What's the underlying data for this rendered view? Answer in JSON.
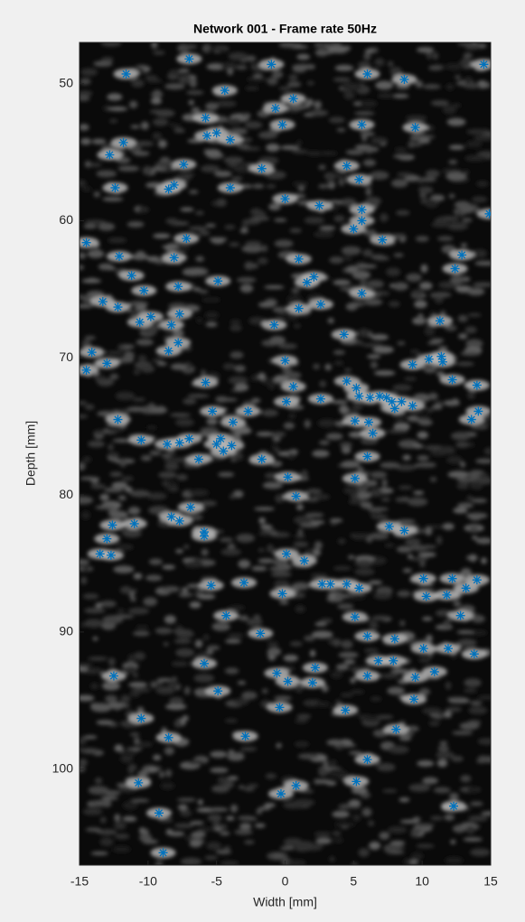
{
  "chart_data": {
    "type": "scatter",
    "title": "Network 001 - Frame rate 50Hz",
    "xlabel": "Width [mm]",
    "ylabel": "Depth [mm]",
    "color": "#0072bd",
    "xlim": [
      -15,
      15
    ],
    "ylim": [
      47,
      107
    ],
    "y_reversed": true,
    "xticks": [
      -15,
      -10,
      -5,
      0,
      5,
      10,
      15
    ],
    "yticks": [
      50,
      60,
      70,
      80,
      90,
      100
    ],
    "x": [
      -11.6,
      -7.0,
      -4.4,
      -1.0,
      0.6,
      -0.7,
      6.0,
      8.7,
      14.5,
      -5.8,
      -5.7,
      -5.0,
      -4.0,
      -0.2,
      5.6,
      9.5,
      -11.8,
      -12.8,
      -7.4,
      -1.7,
      4.5,
      5.4,
      -12.4,
      -8.5,
      -8.1,
      -4.0,
      0.0,
      2.5,
      5.6,
      5.6,
      5.0,
      14.9,
      -7.2,
      -14.5,
      7.1,
      -12.1,
      -8.1,
      1.0,
      12.9,
      12.4,
      -11.2,
      2.1,
      1.6,
      -4.9,
      -10.3,
      -7.8,
      5.6,
      -13.3,
      -12.2,
      2.6,
      1.0,
      -7.7,
      -9.8,
      -10.6,
      -8.3,
      -0.8,
      11.3,
      -7.8,
      -8.5,
      4.3,
      -14.1,
      -13.0,
      -14.5,
      0.0,
      9.3,
      10.5,
      11.4,
      11.5,
      -5.8,
      0.6,
      4.5,
      5.2,
      14.0,
      12.2,
      -5.3,
      -2.7,
      0.1,
      2.6,
      5.4,
      6.2,
      6.9,
      7.4,
      7.8,
      8.0,
      8.5,
      9.3,
      14.1,
      13.6,
      -3.8,
      -12.2,
      5.1,
      6.1,
      6.4,
      -10.5,
      -7.0,
      -7.7,
      -8.6,
      -4.7,
      -5.0,
      -3.9,
      -4.5,
      -6.3,
      -1.7,
      6.0,
      0.2,
      5.1,
      0.8,
      -6.9,
      -8.3,
      -7.7,
      -11.0,
      -12.6,
      -5.9,
      -5.9,
      7.6,
      8.7,
      -13.0,
      -13.5,
      -12.7,
      0.1,
      1.4,
      10.1,
      12.2,
      14.0,
      -5.4,
      -3.0,
      2.7,
      3.3,
      4.5,
      5.4,
      -0.2,
      10.3,
      11.8,
      13.2,
      -4.3,
      5.1,
      12.8,
      -1.8,
      6.0,
      8.0,
      10.1,
      11.9,
      13.8,
      6.8,
      7.9,
      -5.9,
      2.2,
      10.9,
      -0.6,
      6.0,
      -12.5,
      9.5,
      2.0,
      0.2,
      -4.9,
      9.4,
      -0.4,
      4.4,
      -10.5,
      8.1,
      -8.5,
      -2.9,
      6.0,
      -10.7,
      0.8,
      5.2,
      -0.3,
      -9.2,
      12.3,
      -8.9
    ],
    "values": [
      49.3,
      48.2,
      50.5,
      48.6,
      51.1,
      51.8,
      49.3,
      49.7,
      48.6,
      52.5,
      53.8,
      53.6,
      54.1,
      53.0,
      53.0,
      53.2,
      54.3,
      55.2,
      55.9,
      56.2,
      56.0,
      57.0,
      57.6,
      57.7,
      57.4,
      57.6,
      58.4,
      58.9,
      59.2,
      60.0,
      60.6,
      59.5,
      61.3,
      61.6,
      61.4,
      62.6,
      62.7,
      62.8,
      62.5,
      63.5,
      64.0,
      64.1,
      64.5,
      64.4,
      65.1,
      64.8,
      65.3,
      65.9,
      66.3,
      66.1,
      66.4,
      66.8,
      67.0,
      67.4,
      67.6,
      67.6,
      67.3,
      68.9,
      69.5,
      68.3,
      69.6,
      70.4,
      70.9,
      70.2,
      70.5,
      70.1,
      69.9,
      70.3,
      71.8,
      72.1,
      71.7,
      72.2,
      72.0,
      71.6,
      73.9,
      73.9,
      73.2,
      73.0,
      72.8,
      72.9,
      72.8,
      72.9,
      73.2,
      73.7,
      73.2,
      73.5,
      73.9,
      74.5,
      74.7,
      74.5,
      74.6,
      74.7,
      75.5,
      76.0,
      75.9,
      76.2,
      76.3,
      75.9,
      76.3,
      76.4,
      76.8,
      77.4,
      77.4,
      77.2,
      78.7,
      78.8,
      80.1,
      80.9,
      81.6,
      81.9,
      82.1,
      82.2,
      82.7,
      83.0,
      82.3,
      82.6,
      83.2,
      84.3,
      84.4,
      84.3,
      84.8,
      86.1,
      86.1,
      86.2,
      86.6,
      86.4,
      86.5,
      86.5,
      86.5,
      86.8,
      87.2,
      87.4,
      87.3,
      86.8,
      88.8,
      88.9,
      88.8,
      90.1,
      90.3,
      90.5,
      91.2,
      91.2,
      91.6,
      92.1,
      92.1,
      92.3,
      92.6,
      92.9,
      93.0,
      93.2,
      93.2,
      93.3,
      93.7,
      93.6,
      94.3,
      94.9,
      95.5,
      95.7,
      96.3,
      97.1,
      97.7,
      97.6,
      99.3,
      101.0,
      101.2,
      100.9,
      101.8,
      103.2,
      102.7,
      106.1
    ]
  }
}
